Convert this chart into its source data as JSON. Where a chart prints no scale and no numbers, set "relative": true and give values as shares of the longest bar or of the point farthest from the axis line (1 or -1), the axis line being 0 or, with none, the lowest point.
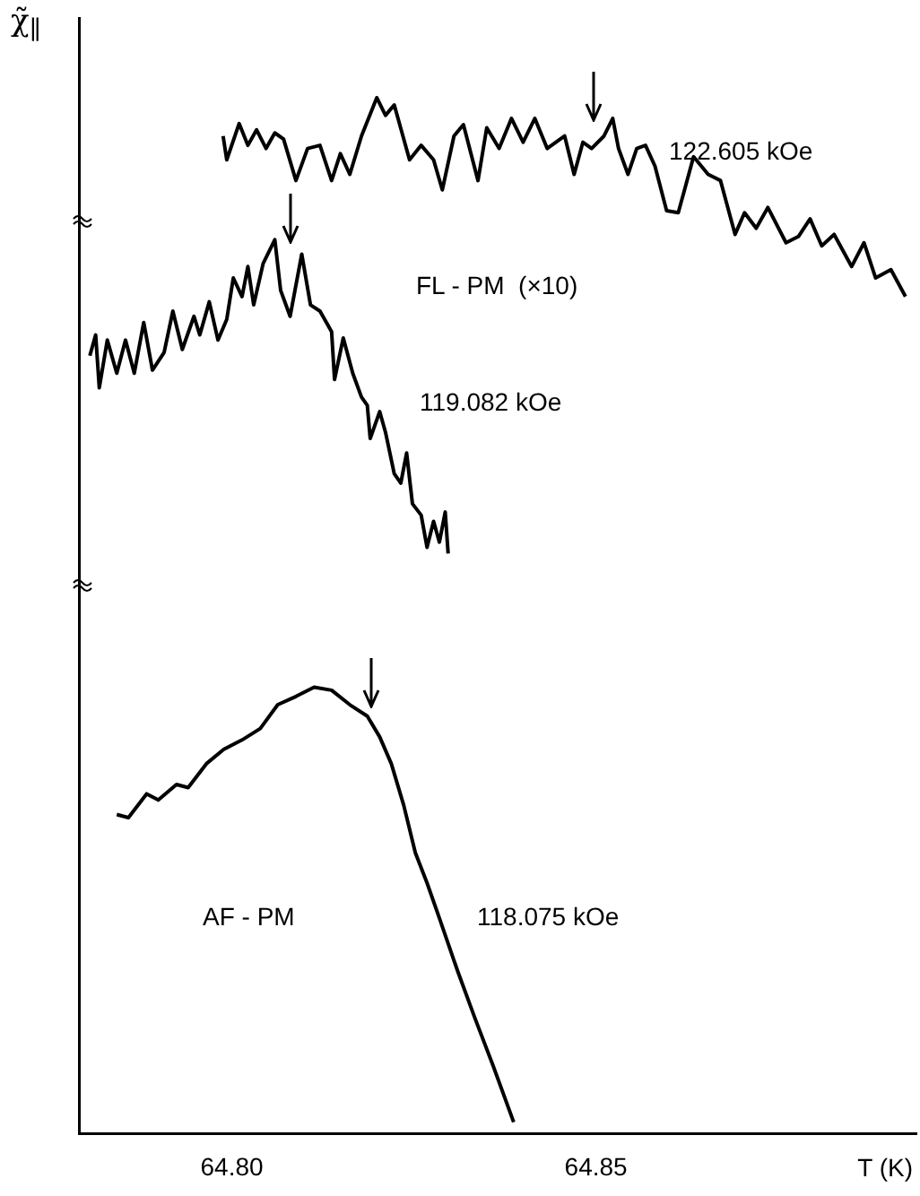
{
  "chart_data": {
    "type": "line",
    "relative": true,
    "xlabel": "T (K)",
    "ylabel": "χ̃$_{∥}$",
    "xlim": [
      64.779,
      64.894
    ],
    "xticks": [
      {
        "value": 64.8,
        "label": "64.80"
      },
      {
        "value": 64.85,
        "label": "64.85"
      }
    ],
    "grid": false,
    "legend": false,
    "marker": "none",
    "line_style": "solid",
    "annotations": [
      "122.605 kOe",
      "FL - PM  (×10)",
      "119.082 kOe",
      "AF - PM",
      "118.075 kOe"
    ],
    "series": [
      {
        "color": "#000000",
        "x": [
          64.7988,
          64.7993,
          64.801,
          64.8022,
          64.8034,
          64.8047,
          64.8059,
          64.8071,
          64.8088,
          64.8104,
          64.8121,
          64.8137,
          64.8149,
          64.8162,
          64.8178,
          64.8199,
          64.8211,
          64.8223,
          64.8244,
          64.826,
          64.8277,
          64.8289,
          64.8305,
          64.8318,
          64.8338,
          64.835,
          64.8367,
          64.8384,
          64.84,
          64.8416,
          64.8433,
          64.8457,
          64.847,
          64.8482,
          64.8494,
          64.8511,
          64.8523,
          64.8531,
          64.8544,
          64.8556,
          64.8568,
          64.8581,
          64.8597,
          64.8613,
          64.8634,
          64.8654,
          64.8671,
          64.8691,
          64.8704,
          64.872,
          64.8736,
          64.8761,
          64.8778,
          64.8794,
          64.881,
          64.8827,
          64.8851,
          64.8868,
          64.8884,
          64.8905,
          64.8925
        ],
        "values": [
          0.963,
          0.94,
          0.975,
          0.954,
          0.969,
          0.951,
          0.966,
          0.96,
          0.92,
          0.951,
          0.954,
          0.92,
          0.946,
          0.926,
          0.963,
          1,
          0.983,
          0.993,
          0.94,
          0.954,
          0.94,
          0.911,
          0.963,
          0.974,
          0.92,
          0.971,
          0.951,
          0.98,
          0.957,
          0.98,
          0.951,
          0.963,
          0.926,
          0.957,
          0.951,
          0.963,
          0.98,
          0.951,
          0.926,
          0.951,
          0.954,
          0.934,
          0.891,
          0.889,
          0.943,
          0.926,
          0.92,
          0.868,
          0.889,
          0.874,
          0.894,
          0.86,
          0.866,
          0.883,
          0.857,
          0.868,
          0.837,
          0.86,
          0.826,
          0.834,
          0.808
        ]
      },
      {
        "color": "#000000",
        "x": [
          64.7805,
          64.7813,
          64.7818,
          64.7829,
          64.7842,
          64.7854,
          64.7866,
          64.7879,
          64.7891,
          64.7907,
          64.7919,
          64.7932,
          64.7948,
          64.7956,
          64.7969,
          64.7981,
          64.7993,
          64.8002,
          64.8014,
          64.8022,
          64.803,
          64.8043,
          64.8059,
          64.8067,
          64.808,
          64.8096,
          64.8108,
          64.8121,
          64.8137,
          64.8141,
          64.8153,
          64.8166,
          64.8178,
          64.8186,
          64.819,
          64.8203,
          64.8211,
          64.8223,
          64.8232,
          64.824,
          64.8248,
          64.826,
          64.8268,
          64.8277,
          64.8285,
          64.8293,
          64.8297
        ],
        "values": [
          0.751,
          0.771,
          0.72,
          0.766,
          0.734,
          0.766,
          0.734,
          0.783,
          0.737,
          0.754,
          0.794,
          0.757,
          0.789,
          0.771,
          0.803,
          0.766,
          0.786,
          0.826,
          0.808,
          0.837,
          0.8,
          0.84,
          0.863,
          0.814,
          0.789,
          0.849,
          0.8,
          0.794,
          0.774,
          0.728,
          0.768,
          0.734,
          0.711,
          0.703,
          0.671,
          0.697,
          0.677,
          0.637,
          0.628,
          0.657,
          0.608,
          0.597,
          0.566,
          0.591,
          0.571,
          0.6,
          0.56
        ]
      },
      {
        "color": "#000000",
        "x": [
          64.7842,
          64.7858,
          64.7883,
          64.7899,
          64.7924,
          64.794,
          64.7965,
          64.7989,
          64.8014,
          64.8039,
          64.8063,
          64.8088,
          64.8113,
          64.8137,
          64.8162,
          64.8186,
          64.8203,
          64.8219,
          64.8236,
          64.8252,
          64.8268,
          64.8285,
          64.831,
          64.8334,
          64.8359,
          64.8387
        ],
        "values": [
          0.308,
          0.305,
          0.328,
          0.322,
          0.337,
          0.334,
          0.357,
          0.371,
          0.38,
          0.391,
          0.414,
          0.422,
          0.431,
          0.428,
          0.414,
          0.403,
          0.383,
          0.357,
          0.317,
          0.271,
          0.242,
          0.208,
          0.157,
          0.111,
          0.065,
          0.011
        ]
      }
    ]
  }
}
